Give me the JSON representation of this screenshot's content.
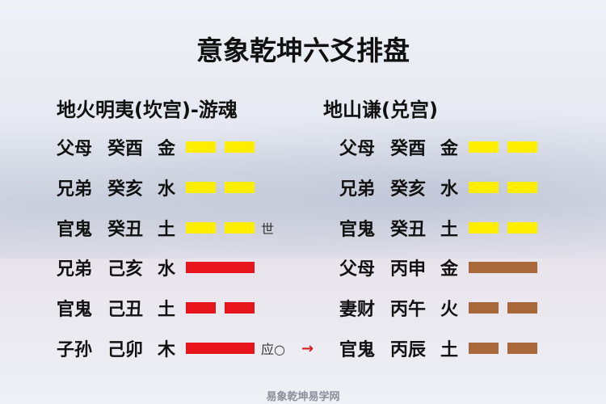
{
  "title": "意象乾坤六爻排盘",
  "left": {
    "heading": "地火明夷(坎宫)-游魂",
    "rows": [
      {
        "relation": "父母",
        "ganzhi": "癸酉",
        "element": "金",
        "line": "yin",
        "color": "#ffee00",
        "mark": ""
      },
      {
        "relation": "兄弟",
        "ganzhi": "癸亥",
        "element": "水",
        "line": "yin",
        "color": "#ffee00",
        "mark": ""
      },
      {
        "relation": "官鬼",
        "ganzhi": "癸丑",
        "element": "土",
        "line": "yin",
        "color": "#ffee00",
        "mark": "世"
      },
      {
        "relation": "兄弟",
        "ganzhi": "己亥",
        "element": "水",
        "line": "yang",
        "color": "#e8141c",
        "mark": ""
      },
      {
        "relation": "官鬼",
        "ganzhi": "己丑",
        "element": "土",
        "line": "yin",
        "color": "#e8141c",
        "mark": ""
      },
      {
        "relation": "子孙",
        "ganzhi": "己卯",
        "element": "木",
        "line": "yang",
        "color": "#e8141c",
        "mark": "应○",
        "arrow": "→"
      }
    ]
  },
  "right": {
    "heading": "地山谦(兑宫)",
    "rows": [
      {
        "relation": "父母",
        "ganzhi": "癸酉",
        "element": "金",
        "line": "yin",
        "color": "#ffee00"
      },
      {
        "relation": "兄弟",
        "ganzhi": "癸亥",
        "element": "水",
        "line": "yin",
        "color": "#ffee00"
      },
      {
        "relation": "官鬼",
        "ganzhi": "癸丑",
        "element": "土",
        "line": "yin",
        "color": "#ffee00"
      },
      {
        "relation": "父母",
        "ganzhi": "丙申",
        "element": "金",
        "line": "yang",
        "color": "#a8683a"
      },
      {
        "relation": "妻财",
        "ganzhi": "丙午",
        "element": "火",
        "line": "yin",
        "color": "#a8683a"
      },
      {
        "relation": "官鬼",
        "ganzhi": "丙辰",
        "element": "土",
        "line": "yin",
        "color": "#a8683a"
      }
    ]
  },
  "watermark": "易象乾坤易学网"
}
